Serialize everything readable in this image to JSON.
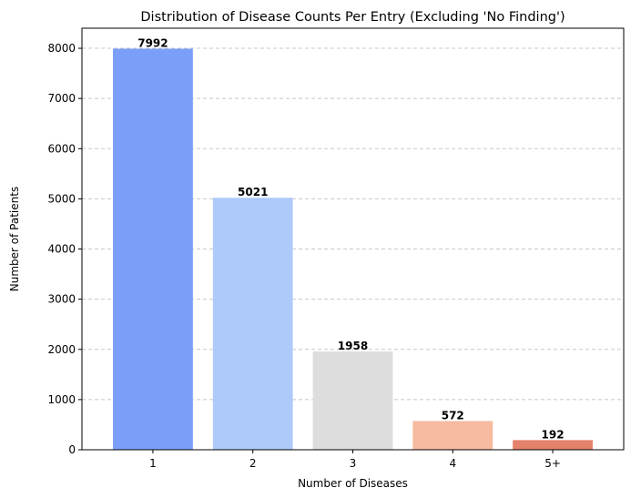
{
  "chart_data": {
    "type": "bar",
    "title": "Distribution of Disease Counts Per Entry (Excluding 'No Finding')",
    "xlabel": "Number of Diseases",
    "ylabel": "Number of Patients",
    "categories": [
      "1",
      "2",
      "3",
      "4",
      "5+"
    ],
    "values": [
      7992,
      5021,
      1958,
      572,
      192
    ],
    "data_labels": [
      "7992",
      "5021",
      "1958",
      "572",
      "192"
    ],
    "colors": [
      "#7b9ff9",
      "#aecafb",
      "#dddddd",
      "#f6bba0",
      "#e5826b"
    ],
    "ylim": [
      0,
      8400
    ],
    "yticks": [
      0,
      1000,
      2000,
      3000,
      4000,
      5000,
      6000,
      7000,
      8000
    ],
    "ytick_labels": [
      "0",
      "1000",
      "2000",
      "3000",
      "4000",
      "5000",
      "6000",
      "7000",
      "8000"
    ],
    "grid": "y-dashed",
    "legend": "none"
  }
}
